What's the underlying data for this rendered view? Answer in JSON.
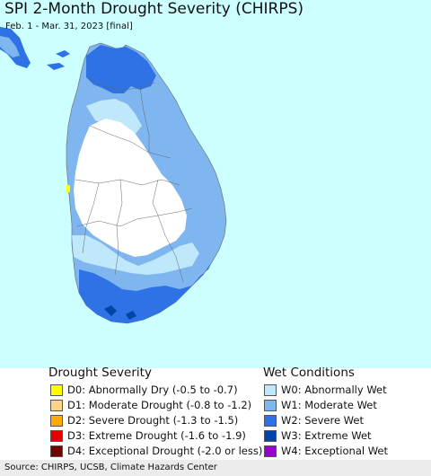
{
  "map": {
    "title": "SPI 2-Month Drought Severity (CHIRPS)",
    "subtitle": "Feb. 1 - Mar. 31, 2023 [final]",
    "colors": {
      "ocean": "#ccffff",
      "land_normal": "#ffffff",
      "w0": "#bfe8fb",
      "w1": "#80b6ef",
      "w2": "#2e72e6",
      "w3": "#0044a8",
      "d0": "#ffff00"
    }
  },
  "legend": {
    "drought_title": "Drought Severity",
    "wet_title": "Wet Conditions",
    "drought_items": [
      {
        "label": "D0: Abnormally Dry (-0.5 to -0.7)",
        "color": "#ffff00"
      },
      {
        "label": "D1: Moderate Drought (-0.8 to -1.2)",
        "color": "#fcd38a"
      },
      {
        "label": "D2: Severe Drought (-1.3 to -1.5)",
        "color": "#ffaa00"
      },
      {
        "label": "D3: Extreme Drought (-1.6 to -1.9)",
        "color": "#e60000"
      },
      {
        "label": "D4: Exceptional Drought (-2.0 or less)",
        "color": "#730000"
      }
    ],
    "wet_items": [
      {
        "label": "W0: Abnormally Wet",
        "color": "#bfe8fb"
      },
      {
        "label": "W1: Moderate Wet",
        "color": "#80b6ef"
      },
      {
        "label": "W2: Severe Wet",
        "color": "#2e72e6"
      },
      {
        "label": "W3: Extreme Wet",
        "color": "#0044a8"
      },
      {
        "label": "W4: Exceptional Wet",
        "color": "#9900cc"
      }
    ]
  },
  "source": "Source: CHIRPS, UCSB, Climate Hazards Center"
}
